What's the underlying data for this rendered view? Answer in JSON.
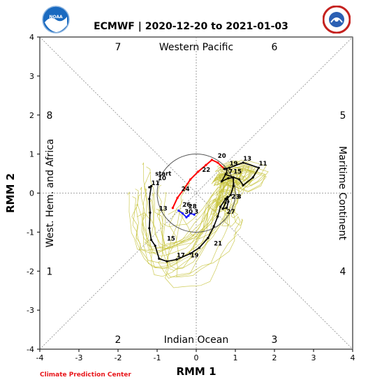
{
  "header": {
    "title": "ECMWF | 2020-12-20 to 2021-01-03",
    "left_logo": {
      "text": "NOAA",
      "icon": "noaa-logo"
    },
    "right_logo": {
      "text": "NATIONAL WEATHER SERVICE",
      "icon": "nws-logo"
    }
  },
  "footer": {
    "credit": "Climate Prediction Center"
  },
  "colors": {
    "ensemble": "#c9c544",
    "mean_forecast": "#000000",
    "observed": "#ff0000",
    "recent_obs": "#0000ff",
    "unit_circle": "#555555",
    "credit": "#e8161b"
  },
  "chart_data": {
    "type": "scatter",
    "xlabel": "RMM 1",
    "ylabel": "RMM 2",
    "xlim": [
      -4,
      4
    ],
    "ylim": [
      -4,
      4
    ],
    "x_ticks": [
      "-4",
      "-3",
      "-2",
      "-1",
      "0",
      "1",
      "2",
      "3",
      "4"
    ],
    "y_ticks": [
      "-4",
      "-3",
      "-2",
      "-1",
      "0",
      "1",
      "2",
      "3",
      "4"
    ],
    "grid": false,
    "regions": {
      "top": "Western Pacific",
      "bottom": "Indian Ocean",
      "left": "West. Hem. and Africa",
      "right": "Maritime Continent"
    },
    "phases": [
      {
        "label": "1",
        "x": -3.75,
        "y": -2
      },
      {
        "label": "2",
        "x": -2,
        "y": -3.75
      },
      {
        "label": "3",
        "x": 2,
        "y": -3.75
      },
      {
        "label": "4",
        "x": 3.75,
        "y": -2
      },
      {
        "label": "5",
        "x": 3.75,
        "y": 2
      },
      {
        "label": "6",
        "x": 2,
        "y": 3.75
      },
      {
        "label": "7",
        "x": -2,
        "y": 3.75
      },
      {
        "label": "8",
        "x": -3.75,
        "y": 2
      }
    ],
    "series": [
      {
        "role": "observed",
        "color": "#ff0000",
        "x": [
          -0.6,
          -0.48,
          -0.3,
          -0.15,
          0.05,
          0.25,
          0.4,
          0.55,
          0.72
        ],
        "y": [
          -0.38,
          -0.12,
          0.12,
          0.35,
          0.55,
          0.72,
          0.85,
          0.78,
          0.62
        ],
        "points": [
          {
            "label": "24",
            "x": -0.38,
            "y": 0.0
          }
        ]
      },
      {
        "role": "mean_forecast",
        "color": "#000000",
        "x": [
          0.72,
          0.85,
          1.2,
          1.6,
          1.45,
          1.2,
          1.1,
          0.75,
          0.65,
          0.82,
          0.95,
          0.95,
          0.88,
          0.78,
          0.75,
          0.68,
          0.78,
          0.82,
          0.8,
          0.75,
          0.62,
          0.55,
          0.45,
          0.3,
          0.08,
          -0.15,
          -0.5,
          -0.75,
          -0.95,
          -1.05,
          -1.15,
          -1.2,
          -1.18,
          -1.2,
          -1.15,
          -1.2
        ],
        "y": [
          0.62,
          0.65,
          0.78,
          0.65,
          0.4,
          0.2,
          0.35,
          0.48,
          0.3,
          0.38,
          0.4,
          0.18,
          -0.05,
          -0.15,
          -0.25,
          -0.4,
          -0.38,
          -0.22,
          -0.1,
          -0.15,
          -0.35,
          -0.6,
          -0.85,
          -1.15,
          -1.4,
          -1.55,
          -1.7,
          -1.75,
          -1.68,
          -1.35,
          -1.2,
          -0.9,
          -0.5,
          -0.15,
          0.18,
          0.15
        ],
        "points": [
          {
            "label": "19",
            "x": 0.85,
            "y": 0.65
          },
          {
            "label": "13",
            "x": 1.2,
            "y": 0.78
          },
          {
            "label": "11",
            "x": 1.6,
            "y": 0.65
          },
          {
            "label": "17",
            "x": 0.72,
            "y": 0.45
          },
          {
            "label": "15",
            "x": 0.95,
            "y": 0.45
          },
          {
            "label": "23",
            "x": 0.9,
            "y": -0.2
          },
          {
            "label": "3",
            "x": 1.05,
            "y": -0.2
          },
          {
            "label": "27",
            "x": 0.78,
            "y": -0.58
          },
          {
            "label": "21",
            "x": 0.45,
            "y": -1.4
          },
          {
            "label": "19",
            "x": -0.15,
            "y": -1.7
          },
          {
            "label": "17",
            "x": -0.5,
            "y": -1.7
          },
          {
            "label": "15",
            "x": -0.75,
            "y": -1.27
          },
          {
            "label": "13",
            "x": -0.95,
            "y": -0.5
          },
          {
            "label": "11",
            "x": -1.15,
            "y": 0.15
          },
          {
            "label": "10",
            "x": -0.98,
            "y": 0.28
          }
        ]
      },
      {
        "role": "recent_obs",
        "color": "#0000ff",
        "x": [
          -0.45,
          -0.35,
          -0.25,
          -0.2,
          -0.15,
          -0.05
        ],
        "y": [
          -0.45,
          -0.52,
          -0.62,
          -0.58,
          -0.52,
          -0.55
        ],
        "points": [
          {
            "label": "26",
            "x": -0.35,
            "y": -0.4
          },
          {
            "label": "28",
            "x": -0.2,
            "y": -0.45
          },
          {
            "label": "30",
            "x": -0.3,
            "y": -0.58
          },
          {
            "label": "3",
            "x": -0.05,
            "y": -0.58
          }
        ]
      }
    ],
    "annotations": [
      {
        "text": "start",
        "x": -1.05,
        "y": 0.45
      },
      {
        "text": "20",
        "x": 0.55,
        "y": 0.9
      },
      {
        "text": "22",
        "x": 0.15,
        "y": 0.55
      }
    ]
  }
}
